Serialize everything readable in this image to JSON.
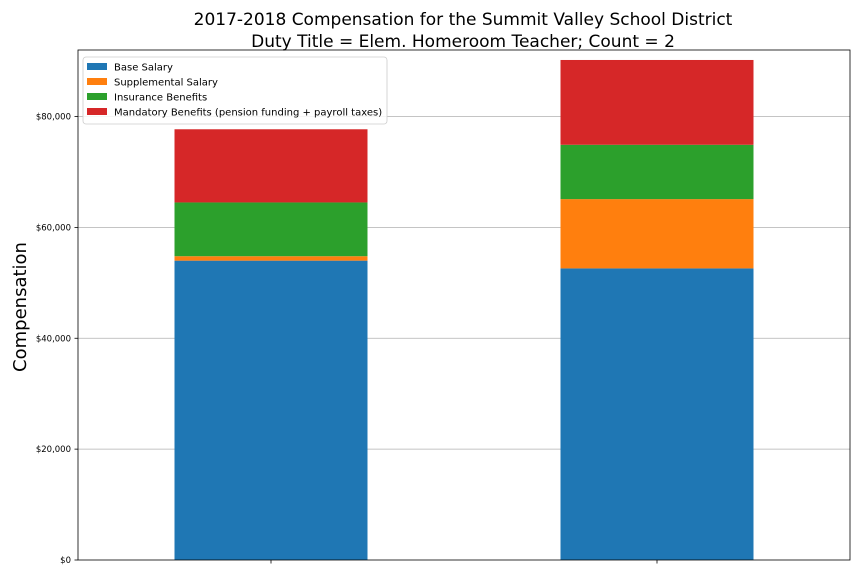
{
  "chart_data": {
    "type": "bar",
    "stacked": true,
    "title": [
      "2017-2018 Compensation for the Summit Valley School District",
      "Duty Title = Elem. Homeroom Teacher; Count = 2"
    ],
    "xlabel": "",
    "ylabel": "Compensation",
    "categories": [
      "",
      ""
    ],
    "ylim": [
      0,
      92000
    ],
    "yticks": [
      0,
      20000,
      40000,
      60000,
      80000
    ],
    "ytick_labels": [
      "$0",
      "$20,000",
      "$40,000",
      "$60,000",
      "$80,000"
    ],
    "grid": "horizontal",
    "legend_position": "top-left",
    "series": [
      {
        "name": "Base Salary",
        "color": "#1f77b4",
        "values": [
          54000,
          52600
        ]
      },
      {
        "name": "Supplemental Salary",
        "color": "#ff7f0e",
        "values": [
          800,
          12500
        ]
      },
      {
        "name": "Insurance Benefits",
        "color": "#2ca02c",
        "values": [
          9700,
          9800
        ]
      },
      {
        "name": "Mandatory Benefits (pension funding + payroll taxes)",
        "color": "#d62728",
        "values": [
          13200,
          15300
        ]
      }
    ]
  }
}
